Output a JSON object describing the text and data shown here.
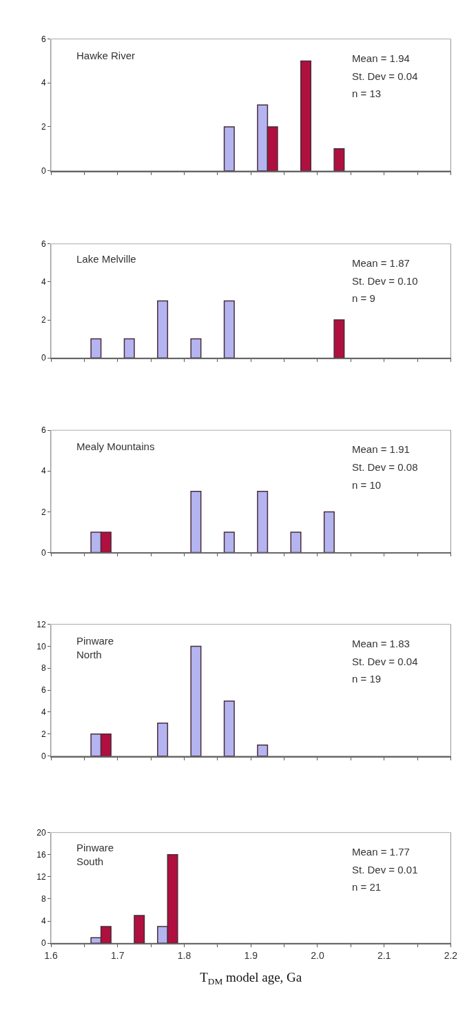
{
  "chart_data": [
    {
      "type": "histogram",
      "title": "Hawke River",
      "bins": [
        1.6,
        1.65,
        1.7,
        1.75,
        1.8,
        1.85,
        1.9,
        1.95,
        2.0,
        2.05,
        2.1,
        2.15,
        2.2
      ],
      "series": [
        {
          "color": "#b4b4f0",
          "values": [
            0,
            0,
            0,
            0,
            0,
            2,
            3,
            0,
            0,
            0,
            0,
            0
          ]
        },
        {
          "color": "#b0103f",
          "values": [
            0,
            0,
            0,
            0,
            0,
            0,
            2,
            5,
            1,
            0,
            0,
            0
          ]
        }
      ],
      "xlim": [
        1.6,
        2.2
      ],
      "xticks": [
        {
          "value": 1.6,
          "label": null
        },
        {
          "value": 1.65,
          "label": null
        },
        {
          "value": 1.7,
          "label": null
        },
        {
          "value": 1.75,
          "label": null
        },
        {
          "value": 1.8,
          "label": null
        },
        {
          "value": 1.85,
          "label": null
        },
        {
          "value": 1.9,
          "label": null
        },
        {
          "value": 1.95,
          "label": null
        },
        {
          "value": 2.0,
          "label": null
        },
        {
          "value": 2.05,
          "label": null
        },
        {
          "value": 2.1,
          "label": null
        },
        {
          "value": 2.15,
          "label": null
        },
        {
          "value": 2.2,
          "label": null
        }
      ],
      "ylim": [
        0,
        6
      ],
      "yticks": [
        0,
        2,
        4,
        6
      ],
      "tick_labels": "y",
      "grid": false,
      "annotations": [
        "Mean = 1.94",
        "St. Dev = 0.04",
        "n = 13"
      ]
    },
    {
      "type": "histogram",
      "title": "Lake Melville",
      "bins": [
        1.6,
        1.65,
        1.7,
        1.75,
        1.8,
        1.85,
        1.9,
        1.95,
        2.0,
        2.05,
        2.1,
        2.15,
        2.2
      ],
      "series": [
        {
          "color": "#b4b4f0",
          "values": [
            0,
            1,
            1,
            3,
            1,
            3,
            0,
            0,
            0,
            0,
            0,
            0
          ]
        },
        {
          "color": "#b0103f",
          "values": [
            0,
            0,
            0,
            0,
            0,
            0,
            0,
            0,
            2,
            0,
            0,
            0
          ]
        }
      ],
      "xlim": [
        1.6,
        2.2
      ],
      "xticks": [
        {
          "value": 1.6,
          "label": null
        },
        {
          "value": 1.65,
          "label": null
        },
        {
          "value": 1.7,
          "label": null
        },
        {
          "value": 1.75,
          "label": null
        },
        {
          "value": 1.8,
          "label": null
        },
        {
          "value": 1.85,
          "label": null
        },
        {
          "value": 1.9,
          "label": null
        },
        {
          "value": 1.95,
          "label": null
        },
        {
          "value": 2.0,
          "label": null
        },
        {
          "value": 2.05,
          "label": null
        },
        {
          "value": 2.1,
          "label": null
        },
        {
          "value": 2.15,
          "label": null
        },
        {
          "value": 2.2,
          "label": null
        }
      ],
      "ylim": [
        0,
        6
      ],
      "yticks": [
        0,
        2,
        4,
        6
      ],
      "tick_labels": "y",
      "grid": false,
      "annotations": [
        "Mean = 1.87",
        "St. Dev = 0.10",
        "n = 9"
      ]
    },
    {
      "type": "histogram",
      "title": "Mealy Mountains",
      "bins": [
        1.6,
        1.65,
        1.7,
        1.75,
        1.8,
        1.85,
        1.9,
        1.95,
        2.0,
        2.05,
        2.1,
        2.15,
        2.2
      ],
      "series": [
        {
          "color": "#b4b4f0",
          "values": [
            0,
            1,
            0,
            0,
            3,
            1,
            3,
            1,
            2,
            0,
            0,
            0
          ]
        },
        {
          "color": "#b0103f",
          "values": [
            0,
            1,
            0,
            0,
            0,
            0,
            0,
            0,
            0,
            0,
            0,
            0
          ]
        }
      ],
      "xlim": [
        1.6,
        2.2
      ],
      "xticks": [
        {
          "value": 1.6,
          "label": null
        },
        {
          "value": 1.65,
          "label": null
        },
        {
          "value": 1.7,
          "label": null
        },
        {
          "value": 1.75,
          "label": null
        },
        {
          "value": 1.8,
          "label": null
        },
        {
          "value": 1.85,
          "label": null
        },
        {
          "value": 1.9,
          "label": null
        },
        {
          "value": 1.95,
          "label": null
        },
        {
          "value": 2.0,
          "label": null
        },
        {
          "value": 2.05,
          "label": null
        },
        {
          "value": 2.1,
          "label": null
        },
        {
          "value": 2.15,
          "label": null
        },
        {
          "value": 2.2,
          "label": null
        }
      ],
      "ylim": [
        0,
        6
      ],
      "yticks": [
        0,
        2,
        4,
        6
      ],
      "tick_labels": "y",
      "grid": false,
      "annotations": [
        "Mean = 1.91",
        "St. Dev = 0.08",
        "n = 10"
      ]
    },
    {
      "type": "histogram",
      "title": "Pinware\nNorth",
      "bins": [
        1.6,
        1.65,
        1.7,
        1.75,
        1.8,
        1.85,
        1.9,
        1.95,
        2.0,
        2.05,
        2.1,
        2.15,
        2.2
      ],
      "series": [
        {
          "color": "#b4b4f0",
          "values": [
            0,
            2,
            0,
            3,
            10,
            5,
            1,
            0,
            0,
            0,
            0,
            0
          ]
        },
        {
          "color": "#b0103f",
          "values": [
            0,
            2,
            0,
            0,
            0,
            0,
            0,
            0,
            0,
            0,
            0,
            0
          ]
        }
      ],
      "xlim": [
        1.6,
        2.2
      ],
      "xticks": [
        {
          "value": 1.6,
          "label": null
        },
        {
          "value": 1.65,
          "label": null
        },
        {
          "value": 1.7,
          "label": null
        },
        {
          "value": 1.75,
          "label": null
        },
        {
          "value": 1.8,
          "label": null
        },
        {
          "value": 1.85,
          "label": null
        },
        {
          "value": 1.9,
          "label": null
        },
        {
          "value": 1.95,
          "label": null
        },
        {
          "value": 2.0,
          "label": null
        },
        {
          "value": 2.05,
          "label": null
        },
        {
          "value": 2.1,
          "label": null
        },
        {
          "value": 2.15,
          "label": null
        },
        {
          "value": 2.2,
          "label": null
        }
      ],
      "ylim": [
        0,
        12
      ],
      "yticks": [
        0,
        2,
        4,
        6,
        8,
        10,
        12
      ],
      "tick_labels": "y",
      "grid": false,
      "annotations": [
        "Mean = 1.83",
        "St. Dev = 0.04",
        "n = 19"
      ]
    },
    {
      "type": "histogram",
      "title": "Pinware\nSouth",
      "bins": [
        1.6,
        1.65,
        1.7,
        1.75,
        1.8,
        1.85,
        1.9,
        1.95,
        2.0,
        2.05,
        2.1,
        2.15,
        2.2
      ],
      "series": [
        {
          "color": "#b4b4f0",
          "values": [
            0,
            1,
            0,
            3,
            0,
            0,
            0,
            0,
            0,
            0,
            0,
            0
          ]
        },
        {
          "color": "#b0103f",
          "values": [
            0,
            3,
            5,
            16,
            0,
            0,
            0,
            0,
            0,
            0,
            0,
            0
          ]
        }
      ],
      "xlim": [
        1.6,
        2.2
      ],
      "xticks": [
        {
          "value": 1.6,
          "label": "1.6"
        },
        {
          "value": 1.65,
          "label": null
        },
        {
          "value": 1.7,
          "label": "1.7"
        },
        {
          "value": 1.75,
          "label": null
        },
        {
          "value": 1.8,
          "label": "1.8"
        },
        {
          "value": 1.85,
          "label": null
        },
        {
          "value": 1.9,
          "label": "1.9"
        },
        {
          "value": 1.95,
          "label": null
        },
        {
          "value": 2.0,
          "label": "2.0"
        },
        {
          "value": 2.05,
          "label": null
        },
        {
          "value": 2.1,
          "label": "2.1"
        },
        {
          "value": 2.15,
          "label": null
        },
        {
          "value": 2.2,
          "label": "2.2"
        }
      ],
      "ylim": [
        0,
        20
      ],
      "yticks": [
        0,
        4,
        8,
        12,
        16,
        20
      ],
      "grid": false,
      "xlabel": "T$_{DM}$ model age, Ga",
      "annotations": [
        "Mean = 1.77",
        "St. Dev = 0.01",
        "n = 21"
      ]
    }
  ]
}
